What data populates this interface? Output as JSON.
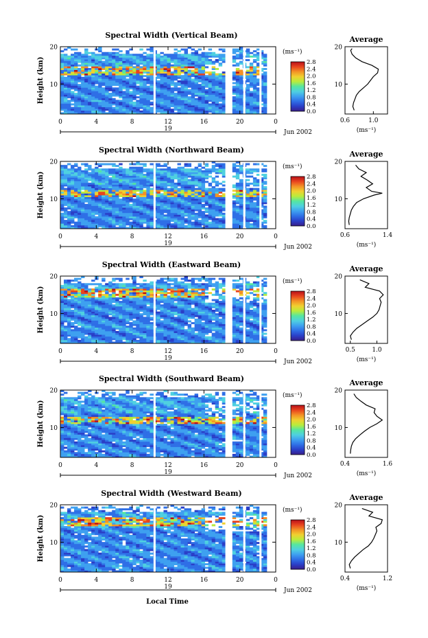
{
  "figure": {
    "xlabel": "Local Time",
    "ylabel": "Height (km)",
    "colorbar_unit": "(ms⁻¹)",
    "date_label": "Jun 2002",
    "day_label": "19",
    "avg_title": "Average",
    "avg_unit": "(ms⁻¹)"
  },
  "chart_data": [
    {
      "type": "heatmap",
      "title": "Spectral Width (Vertical Beam)",
      "xlim": [
        0,
        24
      ],
      "ylim": [
        2,
        20
      ],
      "x_ticks": [
        "0",
        "4",
        "8",
        "12",
        "16",
        "20",
        "0"
      ],
      "y_ticks": [
        "10",
        "20"
      ],
      "colorbar_ticks": [
        "0.0",
        "0.4",
        "0.8",
        "1.2",
        "1.6",
        "2.0",
        "2.4",
        "2.8"
      ],
      "high_bands": [
        [
          13,
          14
        ]
      ],
      "profile": {
        "xlim": [
          0.6,
          1.2
        ],
        "x_ticks": [
          "0.6",
          "1.0"
        ],
        "heights": [
          3,
          4,
          5,
          6,
          7,
          8,
          9,
          10,
          11,
          12,
          13,
          14,
          15,
          16,
          17,
          18,
          19,
          19.5
        ],
        "values": [
          0.73,
          0.71,
          0.72,
          0.74,
          0.76,
          0.8,
          0.86,
          0.92,
          0.96,
          1.0,
          1.06,
          1.07,
          0.98,
          0.84,
          0.75,
          0.7,
          0.68,
          0.7
        ]
      }
    },
    {
      "type": "heatmap",
      "title": "Spectral Width (Northward Beam)",
      "xlim": [
        0,
        24
      ],
      "ylim": [
        2,
        20
      ],
      "x_ticks": [
        "0",
        "4",
        "8",
        "12",
        "16",
        "20",
        "0"
      ],
      "y_ticks": [
        "10",
        "20"
      ],
      "colorbar_ticks": [
        "0.0",
        "0.4",
        "0.8",
        "1.2",
        "1.6",
        "2.0",
        "2.4",
        "2.8"
      ],
      "high_bands": [
        [
          11,
          12
        ]
      ],
      "profile": {
        "xlim": [
          0.6,
          1.4
        ],
        "x_ticks": [
          "0.6",
          "1.4"
        ],
        "heights": [
          3,
          4,
          5,
          6,
          7,
          8,
          9,
          10,
          11,
          11.5,
          12,
          13,
          14,
          15,
          16,
          17,
          18,
          19
        ],
        "values": [
          0.68,
          0.67,
          0.68,
          0.7,
          0.72,
          0.76,
          0.82,
          0.95,
          1.15,
          1.3,
          1.1,
          1.0,
          1.12,
          1.02,
          0.9,
          1.0,
          0.86,
          0.8
        ]
      }
    },
    {
      "type": "heatmap",
      "title": "Spectral Width (Eastward Beam)",
      "xlim": [
        0,
        24
      ],
      "ylim": [
        2,
        20
      ],
      "x_ticks": [
        "0",
        "4",
        "8",
        "12",
        "16",
        "20",
        "0"
      ],
      "y_ticks": [
        "10",
        "20"
      ],
      "colorbar_ticks": [
        "0.0",
        "0.4",
        "0.8",
        "1.2",
        "1.6",
        "2.0",
        "2.4",
        "2.8"
      ],
      "high_bands": [
        [
          15,
          16
        ]
      ],
      "profile": {
        "xlim": [
          0.4,
          1.2
        ],
        "x_ticks": [
          "0.5",
          "1.0"
        ],
        "heights": [
          3,
          4,
          5,
          6,
          7,
          8,
          9,
          10,
          11,
          12,
          13,
          14,
          15,
          16,
          17,
          18,
          19
        ],
        "values": [
          0.52,
          0.5,
          0.55,
          0.62,
          0.72,
          0.82,
          0.92,
          1.0,
          1.04,
          1.06,
          1.08,
          1.05,
          1.12,
          1.05,
          0.78,
          0.85,
          0.68
        ]
      }
    },
    {
      "type": "heatmap",
      "title": "Spectral Width (Southward Beam)",
      "xlim": [
        0,
        24
      ],
      "ylim": [
        2,
        20
      ],
      "x_ticks": [
        "0",
        "4",
        "8",
        "12",
        "16",
        "20",
        "0"
      ],
      "y_ticks": [
        "10",
        "20"
      ],
      "colorbar_ticks": [
        "0.0",
        "0.4",
        "0.8",
        "1.2",
        "1.6",
        "2.0",
        "2.4",
        "2.8"
      ],
      "high_bands": [
        [
          11.5,
          12.5
        ]
      ],
      "profile": {
        "xlim": [
          0.4,
          1.6
        ],
        "x_ticks": [
          "0.4",
          "1.6"
        ],
        "heights": [
          3,
          4,
          5,
          6,
          7,
          8,
          9,
          10,
          11,
          12,
          13,
          14,
          15,
          16,
          17,
          18,
          19
        ],
        "values": [
          0.55,
          0.56,
          0.58,
          0.62,
          0.7,
          0.82,
          0.95,
          1.1,
          1.3,
          1.45,
          1.3,
          1.22,
          1.25,
          1.0,
          0.85,
          0.72,
          0.65
        ]
      }
    },
    {
      "type": "heatmap",
      "title": "Spectral Width (Westward Beam)",
      "xlim": [
        0,
        24
      ],
      "ylim": [
        2,
        20
      ],
      "x_ticks": [
        "0",
        "4",
        "8",
        "12",
        "16",
        "20",
        "0"
      ],
      "y_ticks": [
        "10",
        "20"
      ],
      "colorbar_ticks": [
        "0.0",
        "0.4",
        "0.8",
        "1.2",
        "1.6",
        "2.0",
        "2.4",
        "2.8"
      ],
      "high_bands": [
        [
          15,
          16
        ]
      ],
      "profile": {
        "xlim": [
          0.4,
          1.2
        ],
        "x_ticks": [
          "0.4",
          "1.2"
        ],
        "heights": [
          3,
          4,
          5,
          6,
          7,
          8,
          9,
          10,
          11,
          12,
          13,
          14,
          15,
          16,
          17,
          18,
          19
        ],
        "values": [
          0.5,
          0.48,
          0.52,
          0.58,
          0.66,
          0.74,
          0.84,
          0.9,
          0.94,
          0.97,
          1.0,
          0.98,
          1.08,
          1.1,
          0.85,
          0.92,
          0.72
        ]
      }
    }
  ]
}
